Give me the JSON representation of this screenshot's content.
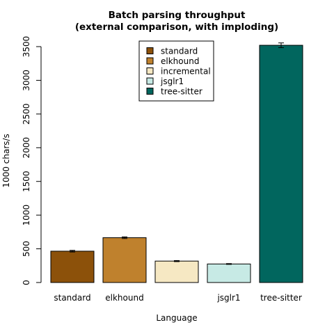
{
  "chart_data": {
    "type": "bar",
    "title_line1": "Batch parsing throughput",
    "title_line2": "(external comparison, with imploding)",
    "xlabel": "Language",
    "ylabel": "1000 chars/s",
    "ylim": [
      0,
      3500
    ],
    "yticks": [
      0,
      500,
      1000,
      1500,
      2000,
      2500,
      3000,
      3500
    ],
    "categories": [
      "standard",
      "elkhound",
      "incremental",
      "jsglr1",
      "tree-sitter"
    ],
    "category_labels_shown": [
      "standard",
      "elkhound",
      "",
      "jsglr1",
      "tree-sitter"
    ],
    "values": [
      465,
      665,
      318,
      275,
      3520
    ],
    "errors": [
      12,
      12,
      8,
      6,
      35
    ],
    "colors": [
      "#8c510a",
      "#bf812d",
      "#f6e8c3",
      "#c7eae5",
      "#01665e"
    ],
    "legend": {
      "placement": "top-center",
      "entries": [
        "standard",
        "elkhound",
        "incremental",
        "jsglr1",
        "tree-sitter"
      ]
    },
    "grid": false
  }
}
